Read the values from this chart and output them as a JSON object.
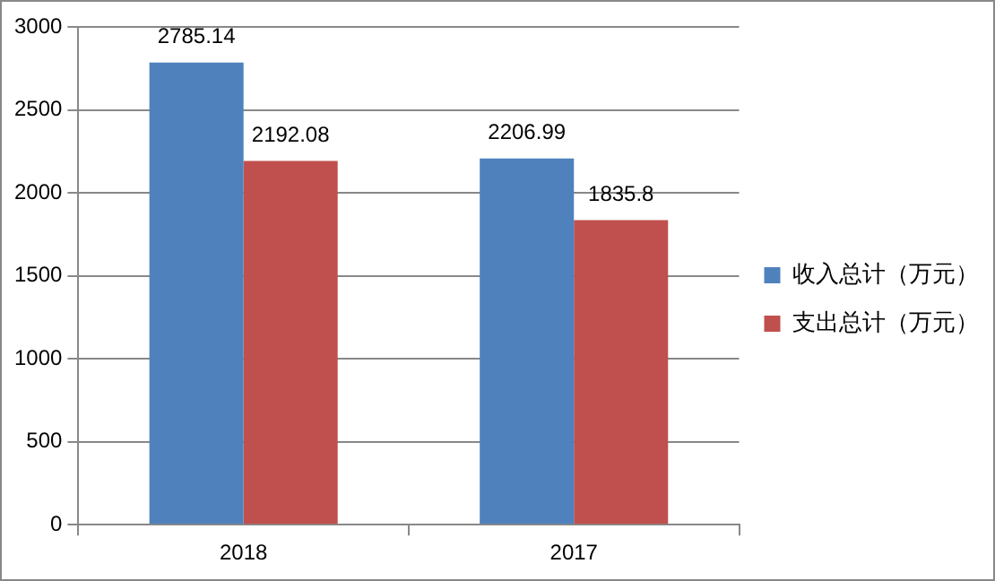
{
  "chart_data": {
    "type": "bar",
    "categories": [
      "2018",
      "2017"
    ],
    "series": [
      {
        "name": "收入总计（万元）",
        "color": "#4f81bd",
        "values": [
          2785.14,
          2206.99
        ]
      },
      {
        "name": "支出总计（万元）",
        "color": "#c0504d",
        "values": [
          2192.08,
          1835.8
        ]
      }
    ],
    "ylim": [
      0,
      3000
    ],
    "yticks": [
      0,
      500,
      1000,
      1500,
      2000,
      2500,
      3000
    ],
    "grid": "y",
    "legend": "right",
    "data_labels": true
  }
}
